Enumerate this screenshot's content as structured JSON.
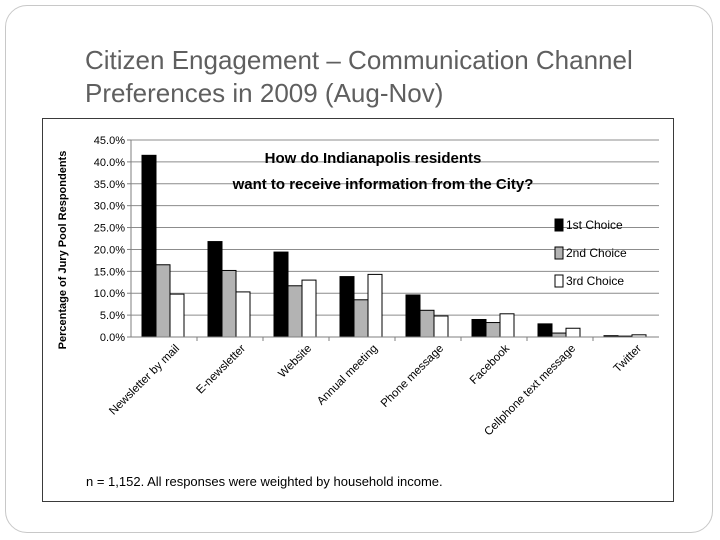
{
  "slide": {
    "title_line1": "Citizen Engagement – Communication Channel",
    "title_line2": "Preferences in 2009 (Aug-Nov)"
  },
  "chart_data": {
    "type": "bar",
    "title_line1": "How do Indianapolis residents",
    "title_line2": "want to receive information from the City?",
    "ylabel": "Percentage of Jury Pool Respondents",
    "xlabel": "",
    "ylim": [
      0,
      45
    ],
    "ytick_step": 5,
    "ytick_labels": [
      "0.0%",
      "5.0%",
      "10.0%",
      "15.0%",
      "20.0%",
      "25.0%",
      "30.0%",
      "35.0%",
      "40.0%",
      "45.0%"
    ],
    "grid": true,
    "legend_position": "right",
    "categories": [
      "Newsletter by mail",
      "E-newsletter",
      "Website",
      "Annual meeting",
      "Phone message",
      "Facebook",
      "Cellphone text message",
      "Twitter"
    ],
    "series": [
      {
        "name": "1st Choice",
        "color": "#000000",
        "values": [
          41.5,
          21.8,
          19.4,
          13.8,
          9.6,
          4.0,
          3.0,
          0.3
        ]
      },
      {
        "name": "2nd Choice",
        "color": "#b3b3b3",
        "values": [
          16.5,
          15.2,
          11.7,
          8.5,
          6.1,
          3.3,
          0.9,
          0.2
        ]
      },
      {
        "name": "3rd Choice",
        "color": "#ffffff",
        "values": [
          9.8,
          10.3,
          13.0,
          14.3,
          4.8,
          5.3,
          2.0,
          0.5
        ]
      }
    ],
    "footnote": "n = 1,152.  All responses were weighted by household income."
  }
}
